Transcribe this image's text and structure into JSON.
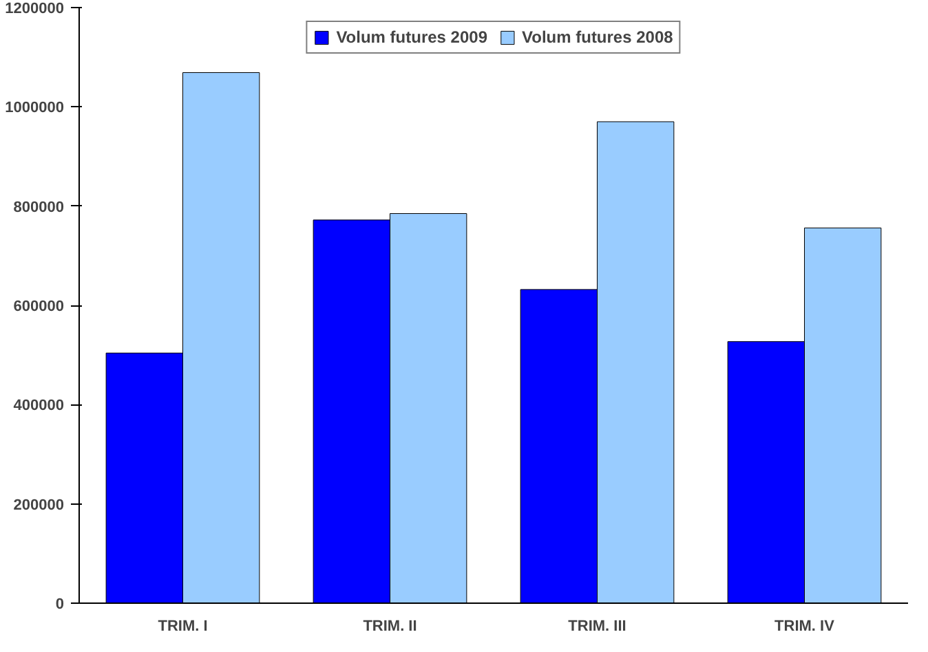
{
  "chart_data": {
    "type": "bar",
    "categories": [
      "TRIM. I",
      "TRIM. II",
      "TRIM. III",
      "TRIM. IV"
    ],
    "series": [
      {
        "name": "Volum futures 2009",
        "color": "#0000ff",
        "values": [
          504000,
          772000,
          632000,
          527000
        ]
      },
      {
        "name": "Volum futures 2008",
        "color": "#99ccff",
        "values": [
          1069000,
          785000,
          970000,
          756000
        ]
      }
    ],
    "ylim": [
      0,
      1200000
    ],
    "yticks": [
      0,
      200000,
      400000,
      600000,
      800000,
      1000000,
      1200000
    ],
    "grid": false,
    "legend": "top"
  }
}
